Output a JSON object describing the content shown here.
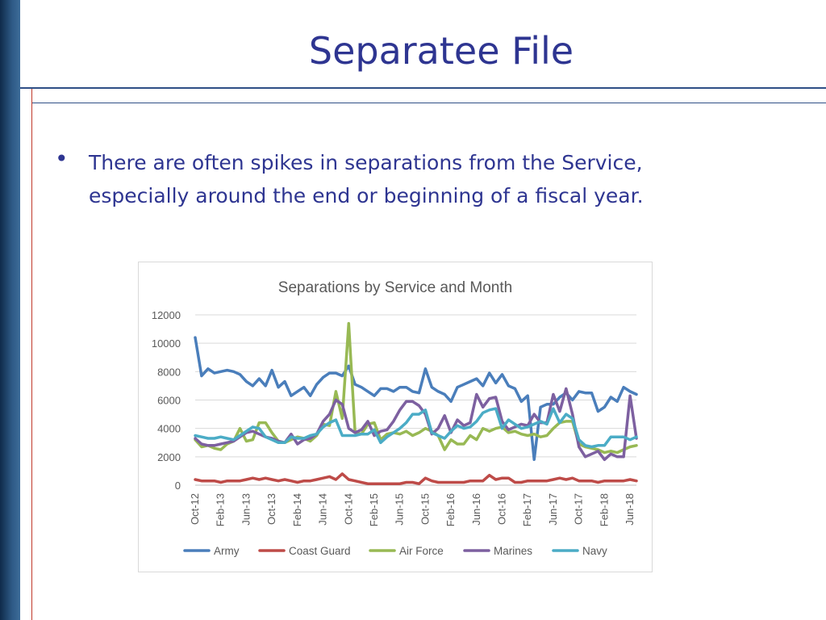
{
  "slide": {
    "title": "Separatee File",
    "bullet": "There are often spikes in separations from the Service, especially around the end or beginning of a fiscal year."
  },
  "chart_data": {
    "type": "line",
    "title": "Separations by Service and Month",
    "xlabel": "",
    "ylabel": "",
    "ylim": [
      0,
      12000
    ],
    "yticks": [
      0,
      2000,
      4000,
      6000,
      8000,
      10000,
      12000
    ],
    "x_tick_labels": [
      "Oct-12",
      "Feb-13",
      "Jun-13",
      "Oct-13",
      "Feb-14",
      "Jun-14",
      "Oct-14",
      "Feb-15",
      "Jun-15",
      "Oct-15",
      "Feb-16",
      "Jun-16",
      "Oct-16",
      "Feb-17",
      "Jun-17",
      "Oct-17",
      "Feb-18",
      "Jun-18"
    ],
    "x_start": "Oct-12",
    "x_end": "Jun-18",
    "grid": true,
    "legend_position": "bottom",
    "series": [
      {
        "name": "Army",
        "color": "#4a7ebb",
        "values": [
          10400,
          7700,
          8200,
          7900,
          8000,
          8100,
          8000,
          7800,
          7300,
          7000,
          7500,
          7000,
          8100,
          6900,
          7300,
          6300,
          6600,
          6900,
          6300,
          7100,
          7600,
          7900,
          7900,
          7700,
          8400,
          7100,
          6900,
          6600,
          6300,
          6800,
          6800,
          6600,
          6900,
          6900,
          6600,
          6500,
          8200,
          6900,
          6600,
          6400,
          5900,
          6900,
          7100,
          7300,
          7500,
          7000,
          7900,
          7200,
          7800,
          7000,
          6800,
          5900,
          6300,
          1800,
          5500,
          5700,
          5700,
          6200,
          6500,
          6000,
          6600,
          6500,
          6500,
          5200,
          5500,
          6200,
          5900,
          6900,
          6600,
          6400
        ]
      },
      {
        "name": "Coast Guard",
        "color": "#be4b48",
        "values": [
          400,
          300,
          300,
          300,
          200,
          300,
          300,
          300,
          400,
          500,
          400,
          500,
          400,
          300,
          400,
          300,
          200,
          300,
          300,
          400,
          500,
          600,
          400,
          800,
          400,
          300,
          200,
          100,
          100,
          100,
          100,
          100,
          100,
          200,
          200,
          100,
          500,
          300,
          200,
          200,
          200,
          200,
          200,
          300,
          300,
          300,
          700,
          400,
          500,
          500,
          200,
          200,
          300,
          300,
          300,
          300,
          400,
          500,
          400,
          500,
          300,
          300,
          300,
          200,
          300,
          300,
          300,
          300,
          400,
          300
        ]
      },
      {
        "name": "Air Force",
        "color": "#98b954",
        "values": [
          3200,
          2700,
          2800,
          2600,
          2500,
          2900,
          3100,
          4000,
          3100,
          3200,
          4400,
          4400,
          3700,
          3100,
          3000,
          3200,
          3400,
          3300,
          3100,
          3500,
          4300,
          4200,
          6600,
          4700,
          11400,
          3700,
          3600,
          4300,
          4400,
          3200,
          3600,
          3700,
          3600,
          3800,
          3500,
          3700,
          4000,
          3800,
          3500,
          2500,
          3200,
          2900,
          2900,
          3500,
          3200,
          4000,
          3800,
          4000,
          4100,
          3700,
          3800,
          3600,
          3500,
          3600,
          3400,
          3500,
          4000,
          4400,
          4500,
          4500,
          2900,
          2700,
          2600,
          2500,
          2300,
          2400,
          2300,
          2500,
          2700,
          2800
        ]
      },
      {
        "name": "Marines",
        "color": "#7d60a0",
        "values": [
          3300,
          2900,
          2800,
          2800,
          2900,
          3000,
          3100,
          3400,
          3700,
          3800,
          3600,
          3400,
          3300,
          3100,
          3000,
          3600,
          2900,
          3200,
          3300,
          3600,
          4500,
          5000,
          6000,
          5700,
          4000,
          3700,
          3900,
          4500,
          3500,
          3800,
          3900,
          4500,
          5300,
          5900,
          5900,
          5600,
          5000,
          3600,
          4000,
          4900,
          3700,
          4600,
          4200,
          4400,
          6400,
          5500,
          6100,
          6200,
          4500,
          3900,
          4100,
          4300,
          4200,
          5000,
          4400,
          4400,
          6400,
          5200,
          6800,
          5000,
          2700,
          2000,
          2200,
          2400,
          1800,
          2200,
          2000,
          2000,
          6300,
          3300
        ]
      },
      {
        "name": "Navy",
        "color": "#4bacc6",
        "values": [
          3500,
          3400,
          3300,
          3300,
          3400,
          3300,
          3200,
          3500,
          3800,
          4100,
          4000,
          3400,
          3200,
          3000,
          3000,
          3400,
          3300,
          3300,
          3500,
          3600,
          4100,
          4400,
          4600,
          3500,
          3500,
          3500,
          3600,
          3600,
          3900,
          3000,
          3400,
          3700,
          4000,
          4400,
          5000,
          5000,
          5300,
          3700,
          3500,
          3300,
          3800,
          4200,
          4000,
          4100,
          4500,
          5100,
          5300,
          5400,
          4000,
          4600,
          4300,
          4000,
          4100,
          4300,
          4500,
          4300,
          5400,
          4400,
          5000,
          4700,
          3200,
          2800,
          2700,
          2800,
          2800,
          3400,
          3400,
          3400,
          3200,
          3400
        ]
      }
    ]
  }
}
